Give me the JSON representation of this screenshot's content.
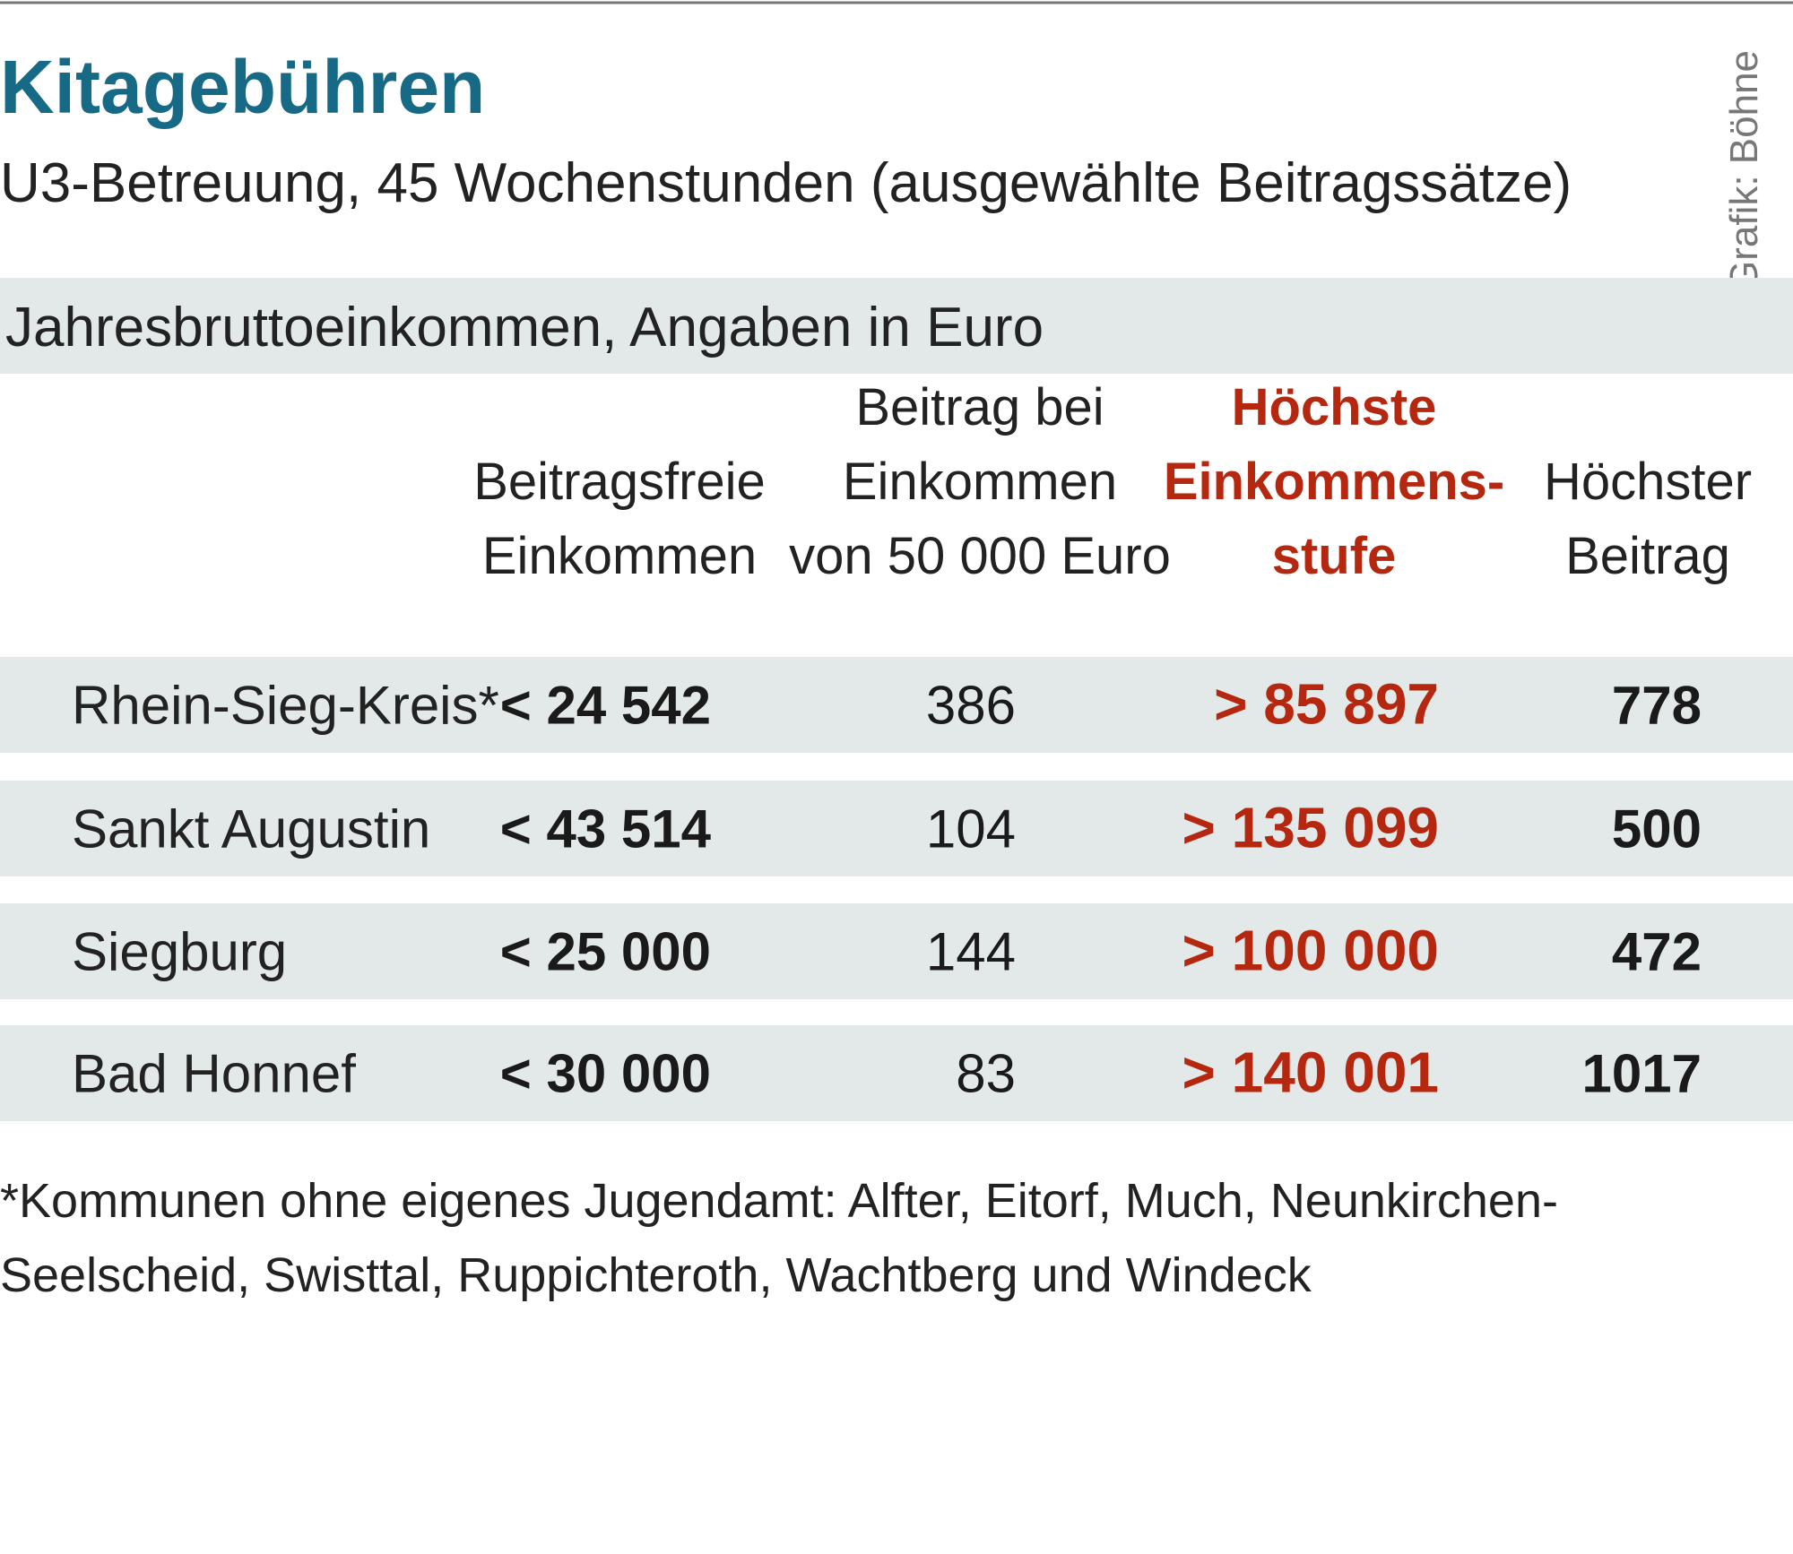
{
  "header": {
    "title": "Kitagebühren",
    "subtitle": "U3-Betreuung, 45 Wochenstunden (ausgewählte Beitragssätze)",
    "credit": "Grafik: Böhne"
  },
  "table": {
    "caption": "Jahresbruttoeinkommen, Angaben in Euro",
    "columns": [
      [
        "Beitragsfreie",
        "Einkommen"
      ],
      [
        "Beitrag bei",
        "Einkommen",
        "von 50 000 Euro"
      ],
      [
        "Höchste",
        "Einkommens-",
        "stufe"
      ],
      [
        "Höchster",
        "Beitrag"
      ]
    ],
    "rows": [
      [
        "Rhein-Sieg-Kreis*",
        "< 24 542",
        "386",
        "> 85 897",
        "778"
      ],
      [
        "Sankt Augustin",
        "< 43 514",
        "104",
        "> 135 099",
        "500"
      ],
      [
        "Siegburg",
        "< 25 000",
        "144",
        "> 100 000",
        "472"
      ],
      [
        "Bad Honnef",
        "< 30 000",
        "83",
        "> 140 001",
        "1017"
      ]
    ]
  },
  "footnote": [
    "*Kommunen ohne eigenes Jugendamt: Alfter, Eitorf, Much, Neunkirchen-",
    "Seelscheid, Swisttal, Ruppichteroth, Wachtberg und Windeck"
  ]
}
